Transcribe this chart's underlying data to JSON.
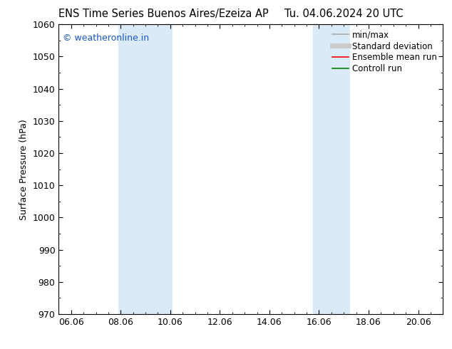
{
  "title_left": "ENS Time Series Buenos Aires/Ezeiza AP",
  "title_right": "Tu. 04.06.2024 20 UTC",
  "ylabel": "Surface Pressure (hPa)",
  "ylim": [
    970,
    1060
  ],
  "yticks": [
    970,
    980,
    990,
    1000,
    1010,
    1020,
    1030,
    1040,
    1050,
    1060
  ],
  "xlim_start": 5.5,
  "xlim_end": 21.0,
  "xtick_labels": [
    "06.06",
    "08.06",
    "10.06",
    "12.06",
    "14.06",
    "16.06",
    "18.06",
    "20.06"
  ],
  "xtick_positions": [
    6.0,
    8.0,
    10.0,
    12.0,
    14.0,
    16.0,
    18.0,
    20.0
  ],
  "shaded_bands": [
    {
      "xmin": 7.917,
      "xmax": 10.083,
      "color": "#daeaf7"
    },
    {
      "xmin": 15.75,
      "xmax": 17.25,
      "color": "#daeaf7"
    }
  ],
  "watermark_text": "© weatheronline.in",
  "watermark_color": "#1a56c4",
  "legend_entries": [
    {
      "label": "min/max",
      "color": "#aaaaaa",
      "lw": 1.2,
      "linestyle": "-"
    },
    {
      "label": "Standard deviation",
      "color": "#cccccc",
      "lw": 5,
      "linestyle": "-"
    },
    {
      "label": "Ensemble mean run",
      "color": "red",
      "lw": 1.2,
      "linestyle": "-"
    },
    {
      "label": "Controll run",
      "color": "green",
      "lw": 1.2,
      "linestyle": "-"
    }
  ],
  "background_color": "#ffffff",
  "title_fontsize": 10.5,
  "label_fontsize": 9,
  "tick_fontsize": 9,
  "legend_fontsize": 8.5,
  "watermark_fontsize": 9
}
